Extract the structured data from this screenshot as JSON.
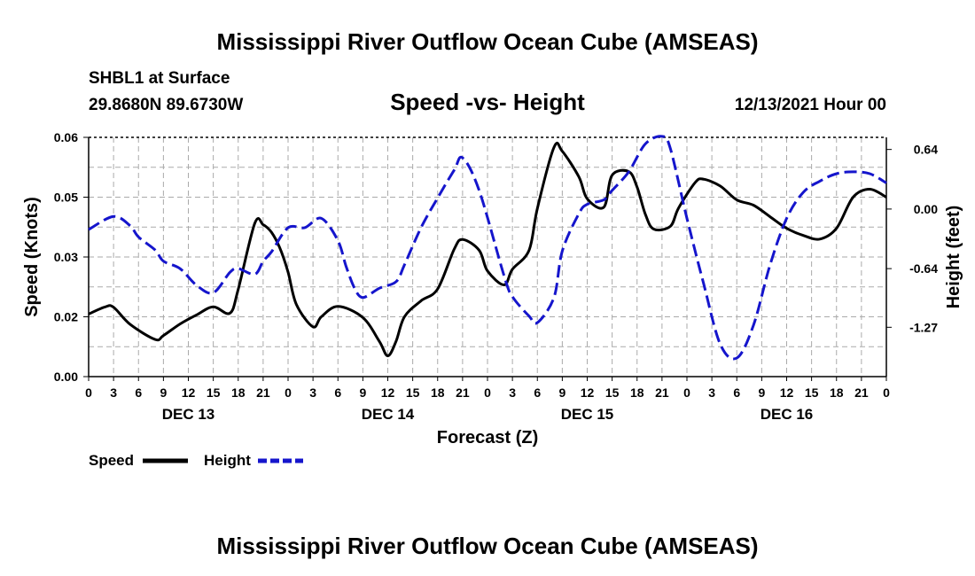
{
  "header": {
    "title": "Mississippi River Outflow Ocean Cube (AMSEAS)",
    "station": "SHBL1 at Surface",
    "location": "29.8680N  89.6730W",
    "subtitle": "Speed -vs- Height",
    "datetime": "12/13/2021 Hour 00",
    "footer_title": "Mississippi River Outflow Ocean Cube (AMSEAS)"
  },
  "colors": {
    "speed": "#000000",
    "height": "#1515cc",
    "grid": "#aaaaaa"
  },
  "chart_data": {
    "type": "line",
    "title": "Speed -vs- Height",
    "xlabel": "Forecast (Z)",
    "ylabel": "Speed (Knots)",
    "y2label": "Height (feet)",
    "x_range": [
      0,
      96
    ],
    "ylim": [
      0,
      0.06
    ],
    "y2lim": [
      -1.8,
      0.77
    ],
    "y_ticks": [
      "0.00",
      "0.02",
      "0.03",
      "0.05",
      "0.06"
    ],
    "y_tick_values": [
      0,
      0.015,
      0.03,
      0.045,
      0.06
    ],
    "y2_ticks": [
      "0.64",
      "0.00",
      "-0.64",
      "-1.27"
    ],
    "y2_tick_values": [
      0.64,
      0.0,
      -0.64,
      -1.27
    ],
    "x_tick_labels": [
      "0",
      "3",
      "6",
      "9",
      "12",
      "15",
      "18",
      "21",
      "0",
      "3",
      "6",
      "9",
      "12",
      "15",
      "18",
      "21",
      "0",
      "3",
      "6",
      "9",
      "12",
      "15",
      "18",
      "21",
      "0",
      "3",
      "6",
      "9",
      "12",
      "15",
      "18",
      "21",
      "0"
    ],
    "day_labels": [
      {
        "label": "DEC 13",
        "hour": 12
      },
      {
        "label": "DEC 14",
        "hour": 36
      },
      {
        "label": "DEC 15",
        "hour": 60
      },
      {
        "label": "DEC 16",
        "hour": 84
      }
    ],
    "legend": {
      "speed": "Speed",
      "height": "Height"
    },
    "series": [
      {
        "name": "Speed",
        "axis": "left",
        "style": "solid",
        "x": [
          0,
          2,
          3,
          5,
          8,
          9,
          11,
          13,
          15,
          17,
          18,
          20,
          21,
          22,
          23,
          24,
          25,
          27,
          28,
          30,
          33,
          35,
          36,
          37,
          38,
          40,
          42,
          44,
          45,
          47,
          48,
          50,
          51,
          53,
          54,
          56,
          57,
          59,
          60,
          62,
          63,
          65,
          66,
          67,
          68,
          70,
          71,
          73,
          74,
          76,
          78,
          80,
          82,
          84,
          86,
          88,
          90,
          92,
          94,
          96
        ],
        "values": [
          0.0157,
          0.0175,
          0.0174,
          0.0131,
          0.0093,
          0.0103,
          0.0132,
          0.0155,
          0.0175,
          0.0159,
          0.0219,
          0.0385,
          0.0381,
          0.0362,
          0.0323,
          0.0262,
          0.0181,
          0.0125,
          0.015,
          0.0176,
          0.0148,
          0.0088,
          0.0052,
          0.0089,
          0.015,
          0.019,
          0.022,
          0.032,
          0.0344,
          0.0317,
          0.0265,
          0.023,
          0.0269,
          0.0317,
          0.0422,
          0.0575,
          0.0565,
          0.0501,
          0.0446,
          0.0425,
          0.0505,
          0.0514,
          0.0475,
          0.0407,
          0.037,
          0.0377,
          0.0423,
          0.0487,
          0.0495,
          0.0478,
          0.0443,
          0.043,
          0.0401,
          0.0372,
          0.0354,
          0.0345,
          0.0372,
          0.045,
          0.047,
          0.045
        ]
      },
      {
        "name": "Height",
        "axis": "right",
        "style": "dashed",
        "x": [
          0,
          3,
          5,
          6,
          8,
          9,
          11,
          13,
          15,
          17,
          18,
          20,
          21,
          22,
          24,
          26,
          28,
          30,
          31,
          32,
          33,
          35,
          37,
          38,
          40,
          42,
          44,
          45,
          47,
          50,
          51,
          53,
          54,
          56,
          57,
          59,
          60,
          62,
          63,
          65,
          67,
          69,
          70,
          72,
          74,
          76,
          78,
          80,
          82,
          84,
          86,
          88,
          90,
          92,
          94,
          96
        ],
        "values": [
          -0.22,
          -0.08,
          -0.18,
          -0.3,
          -0.44,
          -0.56,
          -0.64,
          -0.82,
          -0.9,
          -0.68,
          -0.64,
          -0.7,
          -0.56,
          -0.46,
          -0.2,
          -0.2,
          -0.1,
          -0.34,
          -0.62,
          -0.85,
          -0.95,
          -0.85,
          -0.78,
          -0.6,
          -0.2,
          0.12,
          0.42,
          0.55,
          0.2,
          -0.72,
          -0.94,
          -1.15,
          -1.22,
          -0.95,
          -0.45,
          -0.05,
          0.05,
          0.1,
          0.2,
          0.4,
          0.7,
          0.78,
          0.65,
          -0.1,
          -0.8,
          -1.45,
          -1.6,
          -1.25,
          -0.6,
          -0.1,
          0.18,
          0.3,
          0.38,
          0.4,
          0.38,
          0.28
        ]
      }
    ]
  }
}
